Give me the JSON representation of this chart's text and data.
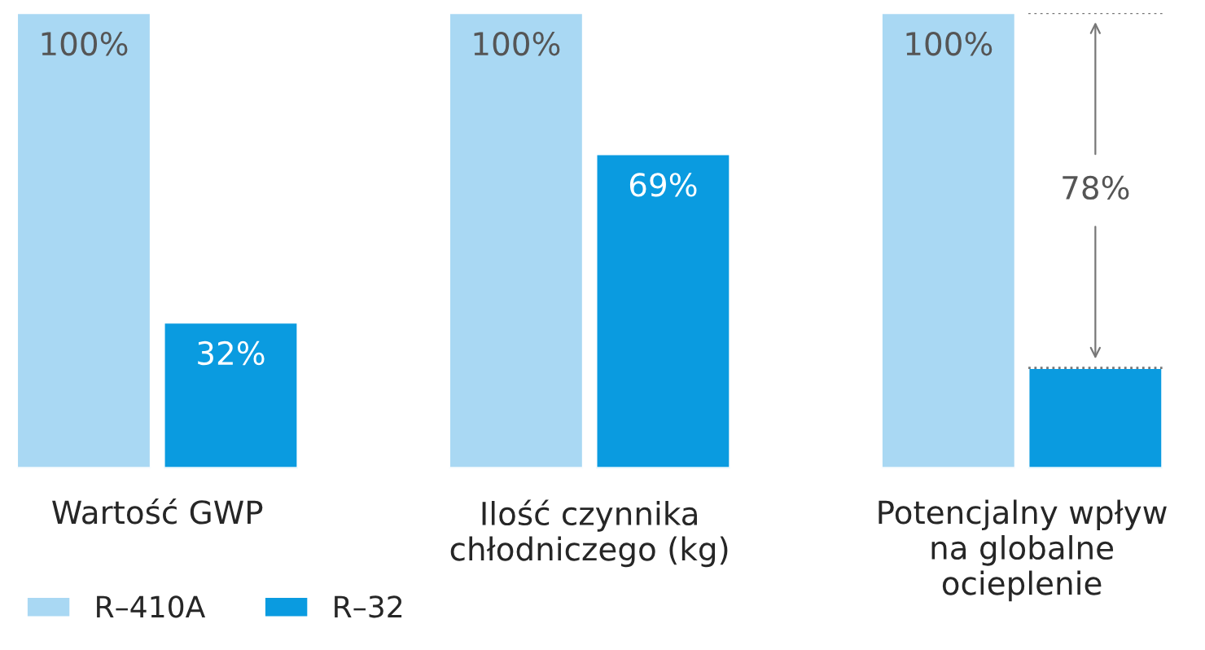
{
  "chart_data": {
    "type": "bar",
    "categories": [
      "Wartość GWP",
      "Ilość czynnika\nchłodniczego (kg)",
      "Potencjalny wpływ\nna globalne\nocieplenie"
    ],
    "series": [
      {
        "name": "R–410A",
        "color": "#a9d8f3",
        "values": [
          100,
          100,
          100
        ],
        "value_labels": [
          "100%",
          "100%",
          "100%"
        ]
      },
      {
        "name": "R–32",
        "color": "#0a9be0",
        "values": [
          32,
          69,
          22
        ],
        "value_labels": [
          "32%",
          "69%",
          null
        ]
      }
    ],
    "ylim": [
      0,
      100
    ],
    "tick_labels": "x",
    "annotations": [
      {
        "text": "78%",
        "x": "Potencjalny wpływ\nna globalne\nocieplenie",
        "y": 61
      }
    ],
    "grid": false,
    "legend": "bottom left"
  }
}
